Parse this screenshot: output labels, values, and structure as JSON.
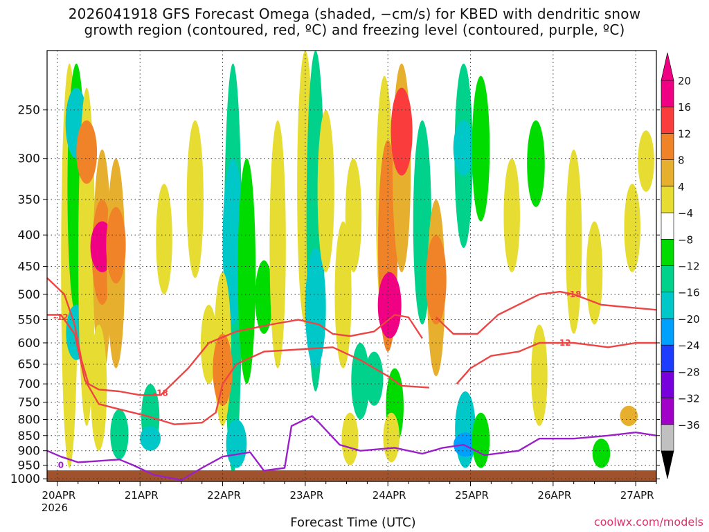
{
  "title_line1": "2026041918 GFS Forecast Omega (shaded, −cm/s) for KBED with dendritic snow",
  "title_line2": "growth region (contoured, red, ºC) and freezing level (contoured, purple, ºC)",
  "xlabel": "Forecast Time (UTC)",
  "credit": "coolwx.com/models",
  "colors": {
    "dgz_contour": "#ee4444",
    "freezing_contour": "#9b1fc9",
    "terrain": "#a0522d",
    "grid": "#333333"
  },
  "chart_data": {
    "type": "heatmap",
    "x_ticks": [
      {
        "label": "20APR",
        "sub": "2026",
        "t": 0
      },
      {
        "label": "21APR",
        "sub": "",
        "t": 24
      },
      {
        "label": "22APR",
        "sub": "",
        "t": 48
      },
      {
        "label": "23APR",
        "sub": "",
        "t": 72
      },
      {
        "label": "24APR",
        "sub": "",
        "t": 96
      },
      {
        "label": "25APR",
        "sub": "",
        "t": 120
      },
      {
        "label": "26APR",
        "sub": "",
        "t": 144
      },
      {
        "label": "27APR",
        "sub": "",
        "t": 168
      }
    ],
    "x_range_hours": [
      -3,
      174
    ],
    "y_ticks": [
      250,
      300,
      350,
      400,
      450,
      500,
      550,
      600,
      650,
      700,
      750,
      800,
      850,
      900,
      950,
      1000
    ],
    "y_range_hpa": [
      200,
      1010
    ],
    "y_scale": "log-pressure",
    "grid": true,
    "colorbar_levels": [
      -36,
      -32,
      -28,
      -24,
      -20,
      -16,
      -12,
      -8,
      -4,
      4,
      8,
      12,
      16,
      20
    ],
    "colorbar_labels": [
      "20",
      "16",
      "12",
      "8",
      "4",
      "−4",
      "−8",
      "−12",
      "−16",
      "−20",
      "−24",
      "−28",
      "−32",
      "−36"
    ],
    "colorbar_colors": [
      "#c0c0c0",
      "#a000c8",
      "#7800dc",
      "#1e3cff",
      "#00a0ff",
      "#00c8c8",
      "#00d28c",
      "#00dc00",
      "#ffffff",
      "#e6dc32",
      "#e6af2d",
      "#f08228",
      "#fa3c3c",
      "#f00082"
    ],
    "omega_cells": [
      {
        "t": 3.5,
        "p0": 210,
        "p1": 960,
        "v": 6
      },
      {
        "t": 5.5,
        "p0": 210,
        "p1": 540,
        "v": -8
      },
      {
        "t": 5.5,
        "p0": 230,
        "p1": 300,
        "v": -16
      },
      {
        "t": 5.5,
        "p0": 520,
        "p1": 640,
        "v": -14
      },
      {
        "t": 8.5,
        "p0": 230,
        "p1": 820,
        "v": 6
      },
      {
        "t": 8.5,
        "p0": 260,
        "p1": 330,
        "v": 14
      },
      {
        "t": 13,
        "p0": 290,
        "p1": 680,
        "v": 9
      },
      {
        "t": 13,
        "p0": 350,
        "p1": 520,
        "v": 14
      },
      {
        "t": 13,
        "p0": 380,
        "p1": 460,
        "v": 20
      },
      {
        "t": 17,
        "p0": 300,
        "p1": 660,
        "v": 9
      },
      {
        "t": 17,
        "p0": 360,
        "p1": 480,
        "v": 12
      },
      {
        "t": 12,
        "p0": 560,
        "p1": 900,
        "v": 5
      },
      {
        "t": 18,
        "p0": 770,
        "p1": 930,
        "v": -9
      },
      {
        "t": 27,
        "p0": 700,
        "p1": 900,
        "v": -9
      },
      {
        "t": 27,
        "p0": 820,
        "p1": 900,
        "v": -14
      },
      {
        "t": 31,
        "p0": 330,
        "p1": 500,
        "v": 5
      },
      {
        "t": 40,
        "p0": 260,
        "p1": 470,
        "v": 6
      },
      {
        "t": 44,
        "p0": 520,
        "p1": 700,
        "v": 5
      },
      {
        "t": 51,
        "p0": 210,
        "p1": 980,
        "v": -9
      },
      {
        "t": 51,
        "p0": 300,
        "p1": 560,
        "v": -14
      },
      {
        "t": 52,
        "p0": 800,
        "p1": 960,
        "v": -14
      },
      {
        "t": 48,
        "p0": 460,
        "p1": 820,
        "v": 7
      },
      {
        "t": 48,
        "p0": 580,
        "p1": 760,
        "v": 12
      },
      {
        "t": 55,
        "p0": 300,
        "p1": 700,
        "v": -8
      },
      {
        "t": 60,
        "p0": 440,
        "p1": 580,
        "v": -8
      },
      {
        "t": 64,
        "p0": 260,
        "p1": 660,
        "v": 5
      },
      {
        "t": 72,
        "p0": 200,
        "p1": 560,
        "v": 5
      },
      {
        "t": 75,
        "p0": 200,
        "p1": 720,
        "v": -9
      },
      {
        "t": 75,
        "p0": 420,
        "p1": 660,
        "v": -14
      },
      {
        "t": 78,
        "p0": 250,
        "p1": 460,
        "v": 6
      },
      {
        "t": 83,
        "p0": 380,
        "p1": 660,
        "v": 6
      },
      {
        "t": 86,
        "p0": 300,
        "p1": 460,
        "v": 5
      },
      {
        "t": 88,
        "p0": 600,
        "p1": 800,
        "v": -9
      },
      {
        "t": 85,
        "p0": 780,
        "p1": 950,
        "v": 6
      },
      {
        "t": 95,
        "p0": 220,
        "p1": 560,
        "v": 7
      },
      {
        "t": 96,
        "p0": 280,
        "p1": 620,
        "v": 12
      },
      {
        "t": 96.5,
        "p0": 460,
        "p1": 590,
        "v": 20
      },
      {
        "t": 100,
        "p0": 210,
        "p1": 460,
        "v": 9
      },
      {
        "t": 100,
        "p0": 230,
        "p1": 320,
        "v": 16
      },
      {
        "t": 92,
        "p0": 620,
        "p1": 760,
        "v": -9
      },
      {
        "t": 98,
        "p0": 660,
        "p1": 880,
        "v": -8
      },
      {
        "t": 97,
        "p0": 780,
        "p1": 940,
        "v": 5
      },
      {
        "t": 106,
        "p0": 260,
        "p1": 560,
        "v": -9
      },
      {
        "t": 110,
        "p0": 350,
        "p1": 680,
        "v": 8
      },
      {
        "t": 110,
        "p0": 400,
        "p1": 560,
        "v": 14
      },
      {
        "t": 118,
        "p0": 210,
        "p1": 420,
        "v": -9
      },
      {
        "t": 118,
        "p0": 260,
        "p1": 320,
        "v": -14
      },
      {
        "t": 118.5,
        "p0": 720,
        "p1": 960,
        "v": -14
      },
      {
        "t": 118.5,
        "p0": 840,
        "p1": 920,
        "v": -20
      },
      {
        "t": 123,
        "p0": 220,
        "p1": 380,
        "v": -8
      },
      {
        "t": 123,
        "p0": 780,
        "p1": 960,
        "v": -8
      },
      {
        "t": 132,
        "p0": 300,
        "p1": 460,
        "v": 5
      },
      {
        "t": 139,
        "p0": 260,
        "p1": 360,
        "v": -8
      },
      {
        "t": 140,
        "p0": 560,
        "p1": 820,
        "v": 5
      },
      {
        "t": 150,
        "p0": 290,
        "p1": 580,
        "v": 5
      },
      {
        "t": 156,
        "p0": 380,
        "p1": 560,
        "v": 5
      },
      {
        "t": 158,
        "p0": 860,
        "p1": 960,
        "v": -8
      },
      {
        "t": 166,
        "p0": 760,
        "p1": 820,
        "v": 8
      },
      {
        "t": 167,
        "p0": 330,
        "p1": 460,
        "v": 5
      },
      {
        "t": 171,
        "p0": 270,
        "p1": 340,
        "v": 5
      }
    ],
    "contours": [
      {
        "label": "-18",
        "kind": "dgz",
        "label_t": 30,
        "label_p": 725,
        "points": [
          [
            -3,
            470
          ],
          [
            2,
            500
          ],
          [
            5,
            560
          ],
          [
            7,
            640
          ],
          [
            9,
            700
          ],
          [
            12,
            715
          ],
          [
            18,
            720
          ],
          [
            24,
            730
          ],
          [
            30,
            730
          ],
          [
            38,
            660
          ],
          [
            44,
            600
          ],
          [
            52,
            575
          ],
          [
            62,
            560
          ],
          [
            70,
            550
          ],
          [
            76,
            560
          ],
          [
            80,
            580
          ],
          [
            85,
            585
          ],
          [
            92,
            575
          ],
          [
            98,
            540
          ],
          [
            102,
            545
          ],
          [
            106,
            590
          ]
        ]
      },
      {
        "label": "-18",
        "kind": "dgz",
        "label_t": 150,
        "label_p": 500,
        "points": [
          [
            110,
            545
          ],
          [
            115,
            580
          ],
          [
            122,
            580
          ],
          [
            128,
            540
          ],
          [
            140,
            500
          ],
          [
            146,
            495
          ],
          [
            150,
            500
          ],
          [
            158,
            520
          ],
          [
            166,
            525
          ],
          [
            174,
            530
          ]
        ]
      },
      {
        "label": "-12",
        "kind": "dgz",
        "label_t": 1,
        "label_p": 545,
        "points": [
          [
            -3,
            540
          ],
          [
            1,
            540
          ],
          [
            5,
            580
          ],
          [
            8,
            690
          ],
          [
            12,
            755
          ],
          [
            18,
            770
          ],
          [
            26,
            790
          ],
          [
            34,
            815
          ],
          [
            42,
            810
          ],
          [
            46,
            780
          ],
          [
            48,
            700
          ],
          [
            52,
            650
          ],
          [
            60,
            620
          ],
          [
            70,
            615
          ],
          [
            80,
            610
          ],
          [
            88,
            640
          ],
          [
            96,
            680
          ],
          [
            100,
            705
          ],
          [
            108,
            710
          ]
        ]
      },
      {
        "label": "-12",
        "kind": "dgz",
        "label_t": 147,
        "label_p": 600,
        "points": [
          [
            116,
            700
          ],
          [
            120,
            660
          ],
          [
            126,
            630
          ],
          [
            134,
            620
          ],
          [
            140,
            600
          ],
          [
            150,
            600
          ],
          [
            160,
            610
          ],
          [
            168,
            600
          ],
          [
            174,
            600
          ]
        ]
      },
      {
        "label": "0",
        "kind": "frz",
        "label_t": 1,
        "label_p": 950,
        "points": [
          [
            -3,
            900
          ],
          [
            1,
            920
          ],
          [
            6,
            940
          ],
          [
            12,
            935
          ],
          [
            18,
            930
          ],
          [
            22,
            950
          ],
          [
            28,
            985
          ],
          [
            36,
            1005
          ],
          [
            42,
            960
          ],
          [
            48,
            920
          ],
          [
            56,
            905
          ],
          [
            60,
            970
          ],
          [
            66,
            960
          ],
          [
            68,
            820
          ],
          [
            74,
            790
          ],
          [
            76,
            810
          ],
          [
            82,
            880
          ],
          [
            88,
            900
          ],
          [
            98,
            890
          ],
          [
            106,
            910
          ],
          [
            112,
            890
          ],
          [
            118,
            880
          ],
          [
            124,
            915
          ],
          [
            134,
            900
          ],
          [
            140,
            860
          ],
          [
            150,
            860
          ],
          [
            160,
            850
          ],
          [
            168,
            840
          ],
          [
            174,
            850
          ]
        ]
      }
    ]
  }
}
